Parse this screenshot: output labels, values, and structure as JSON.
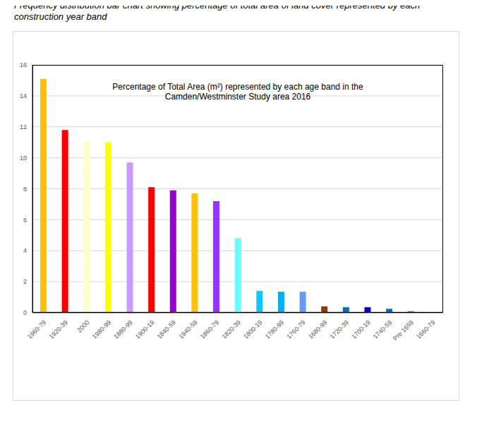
{
  "chart_data": {
    "type": "bar",
    "subtitle": "Frequency distribution bar chart showing percentage of total area of land cover represented by each construction year band",
    "title": "Percentage of Total Area (m²) represented by each age band in the Camden/Westminster Study area 2016",
    "categories": [
      "1960-79",
      "1920-39",
      "2000",
      "1980-99",
      "1880-99",
      "1900-19",
      "1840-59",
      "1940-59",
      "1860-79",
      "1820-39",
      "1800-19",
      "1780-99",
      "1760-79",
      "1680-99",
      "1720-39",
      "1700-19",
      "1740-59",
      "Pre 1659",
      "1660-79"
    ],
    "values": [
      15.1,
      11.8,
      11.1,
      11.0,
      9.7,
      8.1,
      7.9,
      7.7,
      7.2,
      4.8,
      1.4,
      1.35,
      1.35,
      0.4,
      0.35,
      0.35,
      0.25,
      0.1,
      0.02
    ],
    "colors": [
      "#FFC000",
      "#FF0000",
      "#FFFFCC",
      "#FFFF00",
      "#CC99FF",
      "#FF0000",
      "#9900CC",
      "#FFC000",
      "#9933FF",
      "#66FFFF",
      "#00CCFF",
      "#00B0F0",
      "#6699FF",
      "#993300",
      "#0070C0",
      "#0000CC",
      "#0070C0",
      "#00B0F0",
      "#33CCFF"
    ],
    "ylim": [
      0,
      16
    ],
    "yticks": [
      0,
      2,
      4,
      6,
      8,
      10,
      12,
      14,
      16
    ],
    "grid": true
  }
}
